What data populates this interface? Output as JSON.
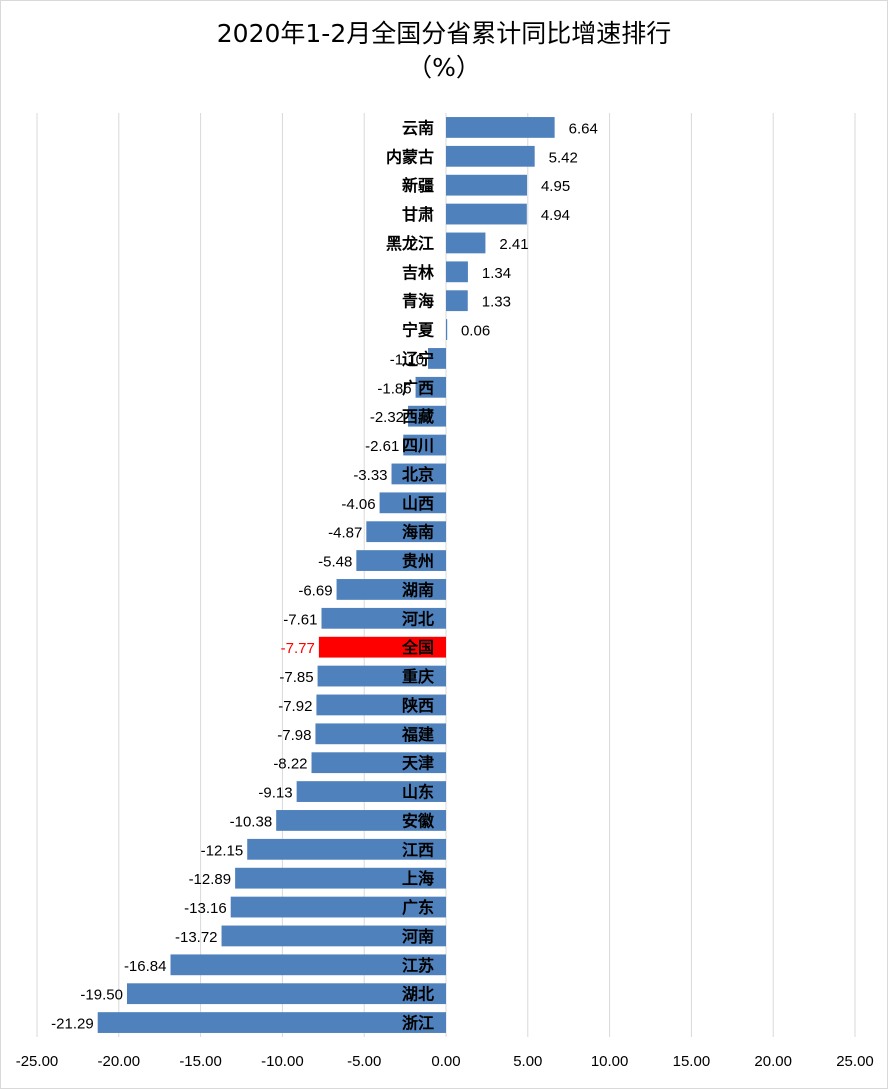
{
  "chart_data": {
    "type": "bar",
    "orientation": "horizontal",
    "title": "2020年1-2月全国分省累计同比增速排行",
    "subtitle": "（%）",
    "xlim": [
      -25,
      25
    ],
    "x_ticks": [
      "-25.00",
      "-20.00",
      "-15.00",
      "-10.00",
      "-5.00",
      "0.00",
      "5.00",
      "10.00",
      "15.00",
      "20.00",
      "25.00"
    ],
    "grid": "vertical",
    "bar_color": "#4f81bd",
    "highlight_color": "#ff0000",
    "highlight_category": "全国",
    "categories": [
      "云南",
      "内蒙古",
      "新疆",
      "甘肃",
      "黑龙江",
      "吉林",
      "青海",
      "宁夏",
      "辽宁",
      "广西",
      "西藏",
      "四川",
      "北京",
      "山西",
      "海南",
      "贵州",
      "湖南",
      "河北",
      "全国",
      "重庆",
      "陕西",
      "福建",
      "天津",
      "山东",
      "安徽",
      "江西",
      "上海",
      "广东",
      "河南",
      "江苏",
      "湖北",
      "浙江"
    ],
    "values": [
      6.64,
      5.42,
      4.95,
      4.94,
      2.41,
      1.34,
      1.33,
      0.06,
      -1.1,
      -1.86,
      -2.32,
      -2.61,
      -3.33,
      -4.06,
      -4.87,
      -5.48,
      -6.69,
      -7.61,
      -7.77,
      -7.85,
      -7.92,
      -7.98,
      -8.22,
      -9.13,
      -10.38,
      -12.15,
      -12.89,
      -13.16,
      -13.72,
      -16.84,
      -19.5,
      -21.29
    ],
    "value_labels": [
      "6.64",
      "5.42",
      "4.95",
      "4.94",
      "2.41",
      "1.34",
      "1.33",
      "0.06",
      "-1.10",
      "-1.86",
      "-2.32",
      "-2.61",
      "-3.33",
      "-4.06",
      "-4.87",
      "-5.48",
      "-6.69",
      "-7.61",
      "-7.77",
      "-7.85",
      "-7.92",
      "-7.98",
      "-8.22",
      "-9.13",
      "-10.38",
      "-12.15",
      "-12.89",
      "-13.16",
      "-13.72",
      "-16.84",
      "-19.50",
      "-21.29"
    ]
  }
}
